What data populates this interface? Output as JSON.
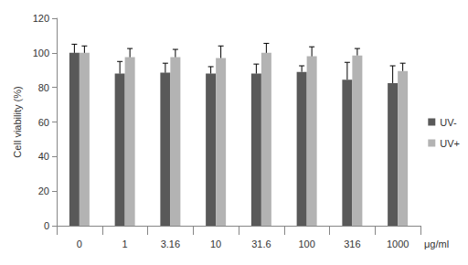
{
  "chart_data": {
    "type": "bar",
    "y_label": "Cell viability (%)",
    "x_label": "μg/ml",
    "categories": [
      "0",
      "1",
      "3.16",
      "10",
      "31.6",
      "100",
      "316",
      "1000"
    ],
    "series": [
      {
        "name": "UV-",
        "color": "#595959",
        "values": [
          100,
          88,
          88.5,
          88,
          88,
          89,
          84.5,
          82.5
        ],
        "errors": [
          5,
          7,
          5.5,
          4,
          5.5,
          3.5,
          10,
          10
        ]
      },
      {
        "name": "UV+",
        "color": "#b3b3b3",
        "values": [
          100,
          97.5,
          97.5,
          97,
          100,
          98,
          98.5,
          89.5
        ],
        "errors": [
          4,
          5,
          4.5,
          7,
          5.5,
          5.5,
          4,
          4.5
        ]
      }
    ],
    "ylim": [
      0,
      120
    ],
    "yticks": [
      0,
      20,
      40,
      60,
      80,
      100,
      120
    ],
    "grid": false,
    "legend": "right"
  }
}
